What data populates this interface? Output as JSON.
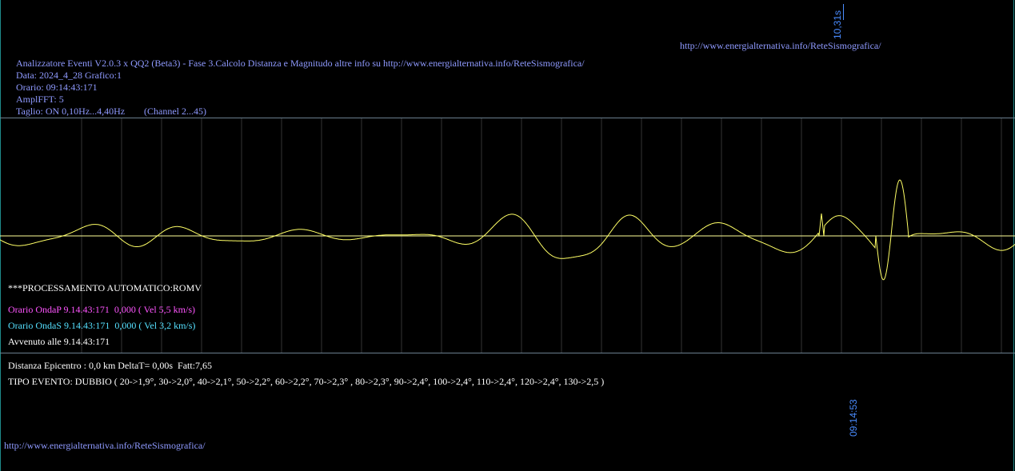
{
  "top_url": "http://www.energialternativa.info/ReteSismografica/",
  "bottom_url": "http://www.energialternativa.info/ReteSismografica/",
  "time_scale_label": "10,31s",
  "end_time_label": "09:14:53",
  "header": {
    "title": "Analizzatore Eventi V2.0.3 x QQ2 (Beta3) - Fase 3.Calcolo Distanza e Magnitudo altre info su http://www.energialternativa.info/ReteSismografica/",
    "data": "Data: 2024_4_28 Grafico:1",
    "orario": "Orario: 09:14:43:171",
    "ampl": "AmplFFT: 5",
    "taglio": "Taglio: ON 0,10Hz...4,40Hz",
    "channel": "(Channel 2...45)"
  },
  "status": {
    "processing": "***PROCESSAMENTO AUTOMATICO:ROMV",
    "onda_p": "Orario OndaP 9.14.43:171  0,000 ( Vel 5,5 km/s)",
    "onda_s": "Orario OndaS 9.14.43:171  0,000 ( Vel 3,2 km/s)",
    "avvenuto": "Avvenuto alle 9.14.43:171",
    "distanza": "Distanza Epicentro : 0,0 km DeltaT= 0,00s  Fatt:7,65",
    "tipo_evento": "TIPO EVENTO: DUBBIO ( 20->1,9°, 30->2,0°, 40->2,1°, 50->2,2°, 60->2,2°, 70->2,3° , 80->2,3°, 90->2,4°, 100->2,4°, 110->2,4°, 120->2,4°, 130->2,5 )"
  },
  "colors": {
    "background": "#000000",
    "header_text": "#8f9aff",
    "onda_p": "#ff55ff",
    "onda_s": "#55e0ff",
    "trace": "#ffff66",
    "baseline": "#ffff99",
    "gridline": "#333333",
    "frame": "#1f8a8a",
    "time_label": "#4a8cff"
  }
}
